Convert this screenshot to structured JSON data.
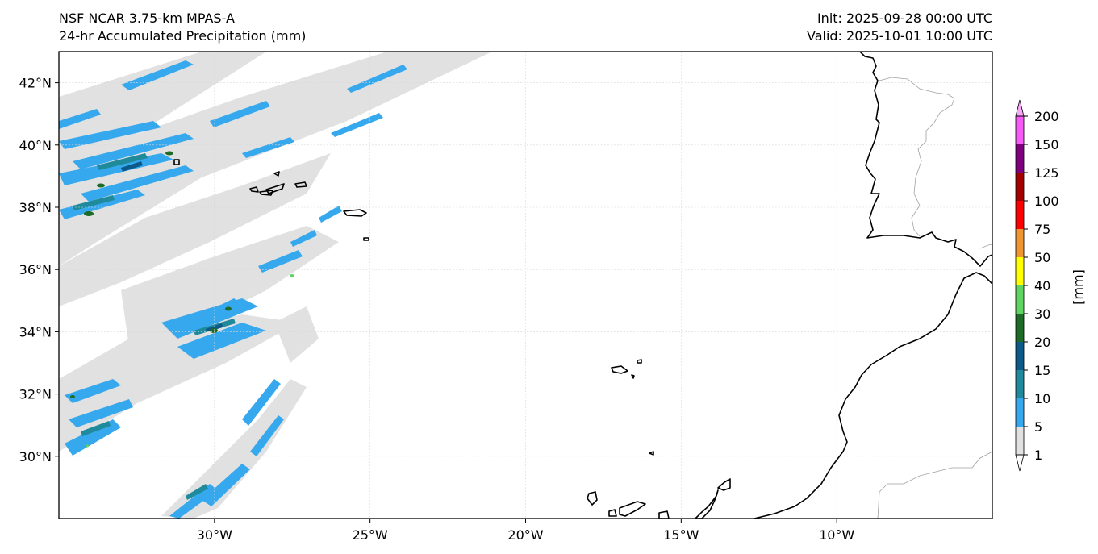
{
  "header": {
    "model_name": "NSF NCAR 3.75-km MPAS-A",
    "field_name": "24-hr Accumulated Precipitation (mm)",
    "init_time": "Init: 2025-09-28 00:00 UTC",
    "valid_time": "Valid: 2025-10-01 10:00 UTC"
  },
  "map": {
    "lon_range": [
      -35,
      -5
    ],
    "lat_range": [
      28,
      43
    ],
    "lon_ticks": [
      {
        "value": -30,
        "label": "30°W"
      },
      {
        "value": -25,
        "label": "25°W"
      },
      {
        "value": -20,
        "label": "20°W"
      },
      {
        "value": -15,
        "label": "15°W"
      },
      {
        "value": -10,
        "label": "10°W"
      }
    ],
    "lat_ticks": [
      {
        "value": 42,
        "label": "42°N"
      },
      {
        "value": 40,
        "label": "40°N"
      },
      {
        "value": 38,
        "label": "38°N"
      },
      {
        "value": 36,
        "label": "36°N"
      },
      {
        "value": 34,
        "label": "34°N"
      },
      {
        "value": 32,
        "label": "32°N"
      },
      {
        "value": 30,
        "label": "30°N"
      }
    ],
    "gridlines": true,
    "background_color": "#ffffff",
    "coastline_color": "#000000",
    "border_color": "#a0a0a0"
  },
  "colorbar": {
    "label": "[mm]",
    "extend": "both",
    "levels": [
      "1",
      "5",
      "10",
      "15",
      "20",
      "30",
      "40",
      "50",
      "75",
      "100",
      "125",
      "150",
      "200"
    ],
    "colors": [
      "#e1e1e1",
      "#36a8ed",
      "#1f8a9b",
      "#0b5a8a",
      "#1d6b27",
      "#5ed560",
      "#ffff00",
      "#ef9534",
      "#fe0000",
      "#a50000",
      "#7f007f",
      "#f55af5"
    ],
    "over_color": "#f9a8f9",
    "under_color": "#ffffff"
  }
}
